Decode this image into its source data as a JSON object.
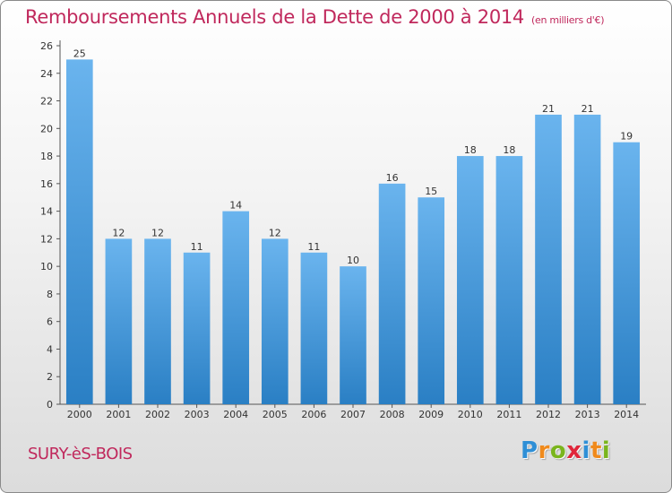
{
  "header": {
    "title": "Remboursements Annuels de la Dette de 2000 à 2014",
    "subtitle": "(en milliers d'€)"
  },
  "footer": {
    "city": "SURY-èS-BOIS",
    "logo_letters": [
      "P",
      "r",
      "o",
      "x",
      "i",
      "t",
      "i"
    ],
    "logo_colors": [
      "#2f8fd6",
      "#f08a1c",
      "#7ab51d",
      "#e0263a",
      "#2f8fd6",
      "#f08a1c",
      "#7ab51d"
    ]
  },
  "colors": {
    "bar_light": "#6ab4ee",
    "bar_dark": "#2a7fc4",
    "text": "#333333",
    "title": "#c0285c"
  },
  "chart_data": {
    "type": "bar",
    "categories": [
      "2000",
      "2001",
      "2002",
      "2003",
      "2004",
      "2005",
      "2006",
      "2007",
      "2008",
      "2009",
      "2010",
      "2011",
      "2012",
      "2013",
      "2014"
    ],
    "values": [
      25,
      12,
      12,
      11,
      14,
      12,
      11,
      10,
      16,
      15,
      18,
      18,
      21,
      21,
      19
    ],
    "ylim": [
      0,
      26
    ],
    "yticks": [
      0,
      2,
      4,
      6,
      8,
      10,
      12,
      14,
      16,
      18,
      20,
      22,
      24,
      26
    ],
    "grid": false,
    "data_labels": true
  }
}
